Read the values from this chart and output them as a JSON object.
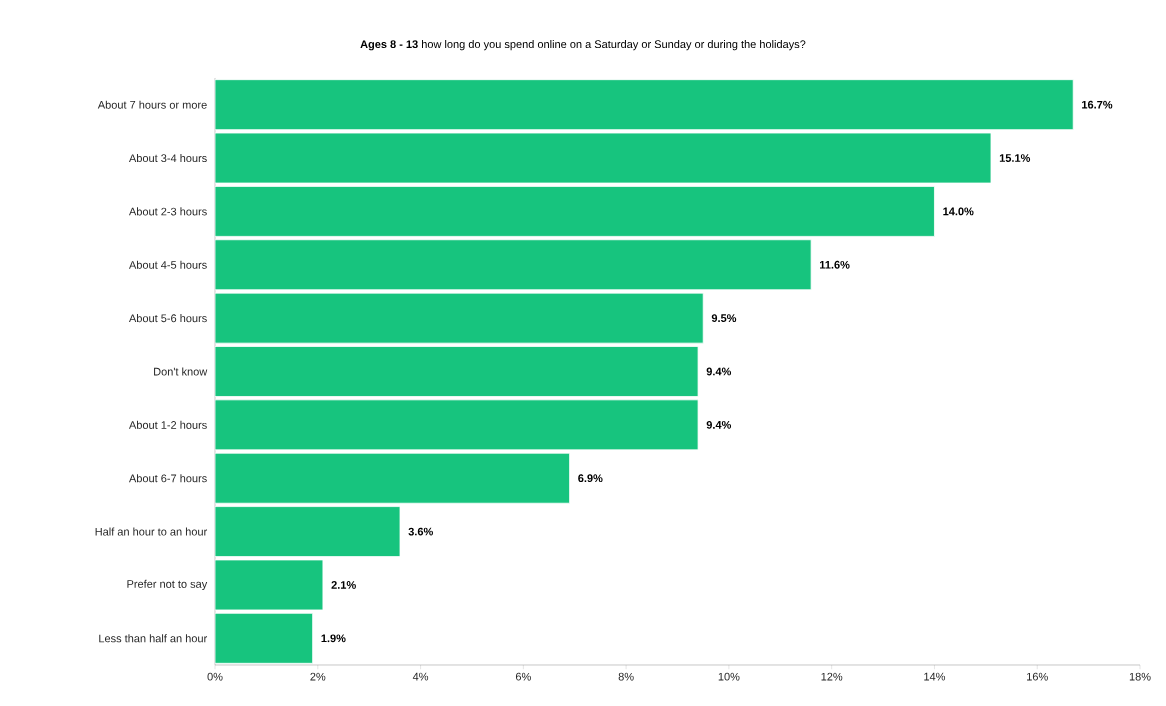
{
  "chart_data": {
    "type": "bar",
    "orientation": "horizontal",
    "title": "**Ages 8 - 13** how long do you spend online on a Saturday or Sunday or during the holidays?",
    "categories": [
      "About 7 hours or more",
      "About 3-4 hours",
      "About 2-3 hours",
      "About 4-5 hours",
      "About 5-6 hours",
      "Don't know",
      "About 1-2 hours",
      "About 6-7 hours",
      "Half an hour to an hour",
      "Prefer not to say",
      "Less than half an hour"
    ],
    "values": [
      16.7,
      15.1,
      14.0,
      11.6,
      9.5,
      9.4,
      9.4,
      6.9,
      3.6,
      2.1,
      1.9
    ],
    "value_labels": [
      "16.7%",
      "15.1%",
      "14.0%",
      "11.6%",
      "9.5%",
      "9.4%",
      "9.4%",
      "6.9%",
      "3.6%",
      "2.1%",
      "1.9%"
    ],
    "color": "#17c47e",
    "xlim": [
      0,
      18
    ],
    "xticks": [
      {
        "value": 0,
        "label": "0%"
      },
      {
        "value": 2,
        "label": "2%"
      },
      {
        "value": 4,
        "label": "4%"
      },
      {
        "value": 6,
        "label": "6%"
      },
      {
        "value": 8,
        "label": "8%"
      },
      {
        "value": 10,
        "label": "10%"
      },
      {
        "value": 12,
        "label": "12%"
      },
      {
        "value": 14,
        "label": "14%"
      },
      {
        "value": 16,
        "label": "16%"
      },
      {
        "value": 18,
        "label": "18%"
      }
    ]
  }
}
